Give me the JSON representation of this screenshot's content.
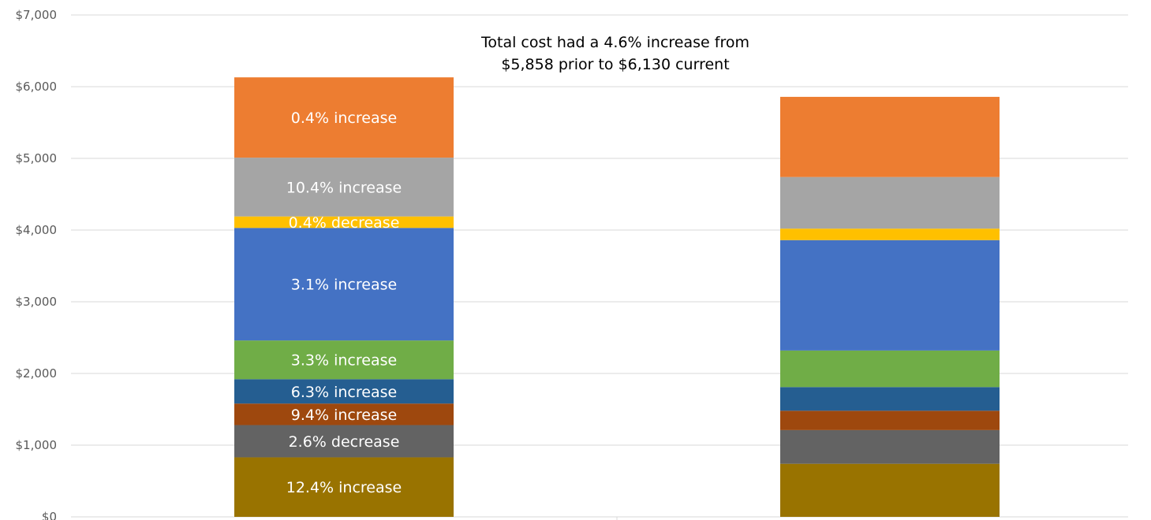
{
  "chart_data": {
    "type": "bar",
    "stacked": true,
    "categories": [
      "",
      ""
    ],
    "ylim": [
      0,
      7000
    ],
    "yticks": [
      "$0",
      "$1,000",
      "$2,000",
      "$3,000",
      "$4,000",
      "$5,000",
      "$6,000",
      "$7,000"
    ],
    "ytick_values": [
      0,
      1000,
      2000,
      3000,
      4000,
      5000,
      6000,
      7000
    ],
    "grid": true,
    "annotation": {
      "line1": "Total cost had a 4.6% increase from",
      "line2": "$5,858 prior to $6,130 current"
    },
    "series": [
      {
        "color": "#997300",
        "values": [
          830,
          740
        ],
        "label": "12.4% increase"
      },
      {
        "color": "#636363",
        "values": [
          450,
          470
        ],
        "label": "2.6% decrease"
      },
      {
        "color": "#9e480e",
        "values": [
          300,
          270
        ],
        "label": "9.4% increase"
      },
      {
        "color": "#255e91",
        "values": [
          340,
          330
        ],
        "label": "6.3% increase"
      },
      {
        "color": "#70ad47",
        "values": [
          540,
          510
        ],
        "label": "3.3% increase"
      },
      {
        "color": "#4472c4",
        "values": [
          1570,
          1540
        ],
        "label": "3.1% increase"
      },
      {
        "color": "#ffc000",
        "values": [
          160,
          160
        ],
        "label": "0.4% decrease"
      },
      {
        "color": "#a5a5a5",
        "values": [
          820,
          720
        ],
        "label": "10.4% increase"
      },
      {
        "color": "#ed7d31",
        "values": [
          1120,
          1118
        ],
        "label": "0.4% increase"
      }
    ],
    "gridline_color": "#d9d9d9"
  }
}
